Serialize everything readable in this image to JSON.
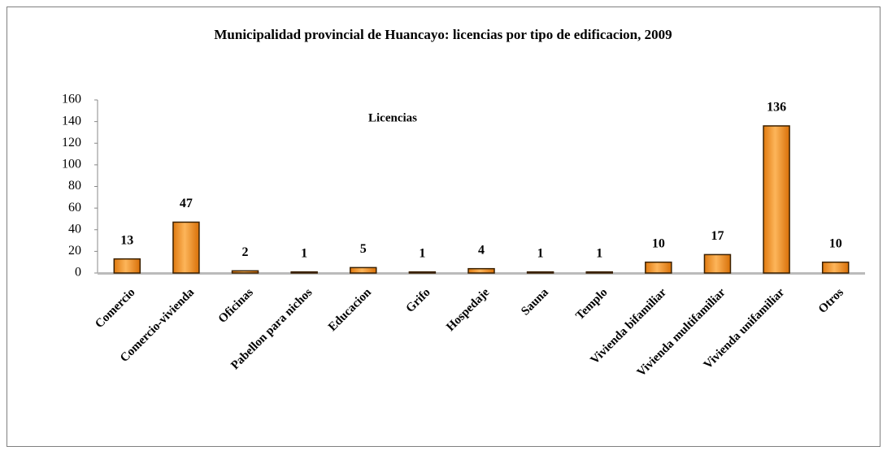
{
  "chart_data": {
    "type": "bar",
    "title": "Municipalidad provincial de Huancayo: licencias por tipo de edificacion, 2009",
    "categories": [
      "Comercio",
      "Comercio-vivienda",
      "Oficinas",
      "Pabellon para nichos",
      "Educacion",
      "Grifo",
      "Hospedaje",
      "Sauna",
      "Templo",
      "Vivienda bifamiliar",
      "Vivienda multifamiliar",
      "Vivienda unifamiliar",
      "Otros"
    ],
    "series": [
      {
        "name": "Licencias",
        "color": "#f7a23a",
        "values": [
          13,
          47,
          2,
          1,
          5,
          1,
          4,
          1,
          1,
          10,
          17,
          136,
          10
        ]
      }
    ],
    "ylim": [
      0,
      160
    ],
    "yticks": [
      0,
      20,
      40,
      60,
      80,
      100,
      120,
      140,
      160
    ],
    "grid": false
  }
}
